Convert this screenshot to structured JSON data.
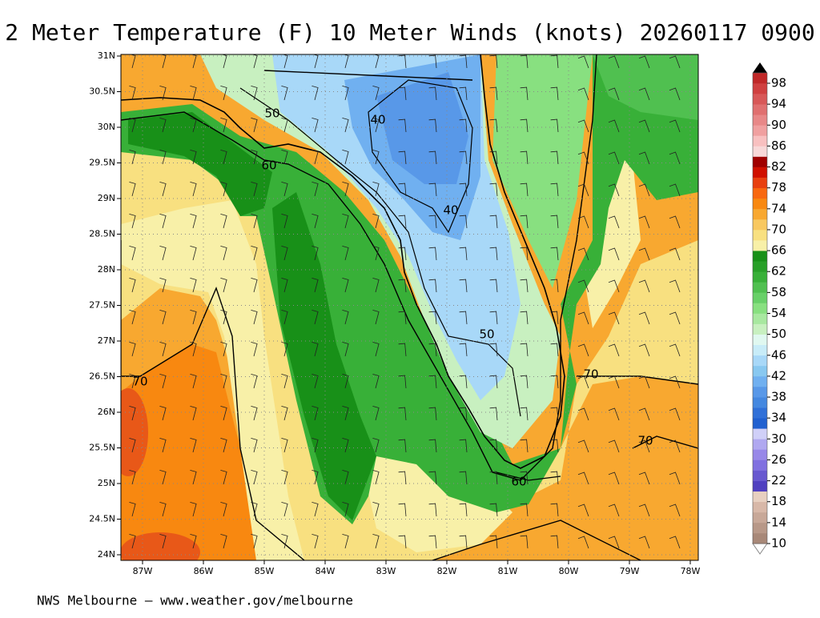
{
  "header": {
    "title": "2 Meter Temperature (F) 10 Meter Winds (knots) 20260117 0900"
  },
  "map": {
    "lat_labels": [
      "31N",
      "30.5N",
      "30N",
      "29.5N",
      "29N",
      "28.5N",
      "28N",
      "27.5N",
      "27N",
      "26.5N",
      "26N",
      "25.5N",
      "25N",
      "24.5N",
      "24N"
    ],
    "lon_labels": [
      "87W",
      "86W",
      "85W",
      "84W",
      "83W",
      "82W",
      "81W",
      "80W",
      "79W",
      "78W"
    ],
    "contour_labels": [
      "50",
      "40",
      "60",
      "40",
      "50",
      "70",
      "70",
      "70",
      "60"
    ]
  },
  "colorbar": {
    "labels": [
      "98",
      "94",
      "90",
      "86",
      "82",
      "78",
      "74",
      "70",
      "66",
      "62",
      "58",
      "54",
      "50",
      "46",
      "42",
      "38",
      "34",
      "30",
      "26",
      "22",
      "18",
      "14",
      "10"
    ],
    "colors": [
      "#a88878",
      "#b89888",
      "#c8a898",
      "#d8b8a8",
      "#e8d0c0",
      "#5040c0",
      "#6858d0",
      "#8070e0",
      "#9888e8",
      "#b0a8f0",
      "#d0d0f8",
      "#2060d0",
      "#3070d8",
      "#4488e0",
      "#5898e8",
      "#70b0f0",
      "#88c8f0",
      "#a8d8f8",
      "#c8ecf8",
      "#e0f8f0",
      "#c8f0c0",
      "#a8e8a0",
      "#88e080",
      "#68d068",
      "#50c050",
      "#38b038",
      "#28a028",
      "#189018",
      "#f8f0a8",
      "#f8e080",
      "#f8c860",
      "#f8a830",
      "#f88810",
      "#f86810",
      "#e84010",
      "#d01000",
      "#a00000",
      "#f8d8d8",
      "#f8c0c0",
      "#f0a0a0",
      "#e88888",
      "#e07070",
      "#d85858",
      "#d04040",
      "#c02828"
    ]
  },
  "footer": "NWS Melbourne — www.weather.gov/melbourne"
}
